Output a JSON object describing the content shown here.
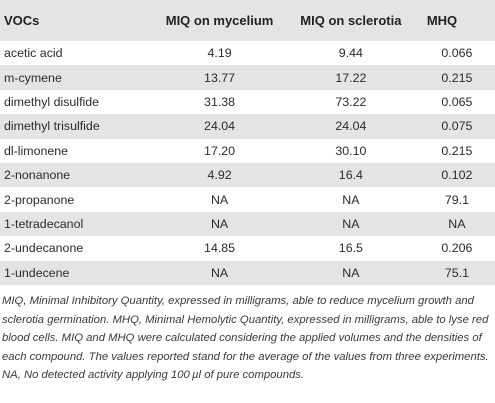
{
  "table": {
    "headers": {
      "voc": "VOCs",
      "mycelium": "MIQ on mycelium",
      "sclerotia": "MIQ on sclerotia",
      "mhq": "MHQ"
    },
    "rows": [
      {
        "voc": "acetic acid",
        "mycelium": "4.19",
        "sclerotia": "9.44",
        "mhq": "0.066"
      },
      {
        "voc": "m-cymene",
        "mycelium": "13.77",
        "sclerotia": "17.22",
        "mhq": "0.215"
      },
      {
        "voc": "dimethyl disulfide",
        "mycelium": "31.38",
        "sclerotia": "73.22",
        "mhq": "0.065"
      },
      {
        "voc": "dimethyl trisulfide",
        "mycelium": "24.04",
        "sclerotia": "24.04",
        "mhq": "0.075"
      },
      {
        "voc": "dl-limonene",
        "mycelium": "17.20",
        "sclerotia": "30.10",
        "mhq": "0.215"
      },
      {
        "voc": "2-nonanone",
        "mycelium": "4.92",
        "sclerotia": "16.4",
        "mhq": "0.102"
      },
      {
        "voc": "2-propanone",
        "mycelium": "NA",
        "sclerotia": "NA",
        "mhq": "79.1"
      },
      {
        "voc": "1-tetradecanol",
        "mycelium": "NA",
        "sclerotia": "NA",
        "mhq": "NA"
      },
      {
        "voc": "2-undecanone",
        "mycelium": "14.85",
        "sclerotia": "16.5",
        "mhq": "0.206"
      },
      {
        "voc": "1-undecene",
        "mycelium": "NA",
        "sclerotia": "NA",
        "mhq": "75.1"
      }
    ]
  },
  "caption": {
    "part1": "MIQ, Minimal Inhibitory Quantity, expressed in milligrams, able to reduce mycelium growth and sclerotia germination. MHQ, Minimal Hemolytic Quantity, expressed in milligrams, able to lyse red blood cells. MIQ and MHQ were calculated considering the applied volumes and the densities of each compound. The values reported stand for the average of the values from three experiments. NA, No detected activity applying 100",
    "unit": "µl",
    "part2": " of pure compounds."
  }
}
